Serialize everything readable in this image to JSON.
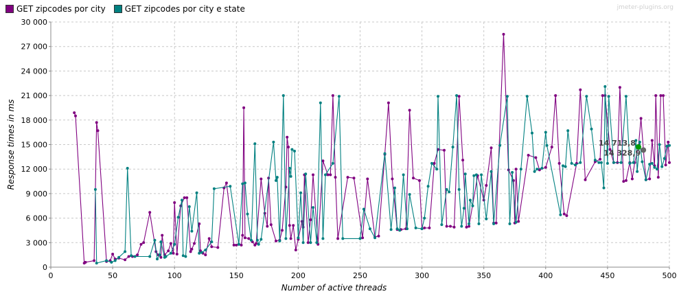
{
  "watermark": "jmeter-plugins.org",
  "chart_data": {
    "type": "line",
    "title": "",
    "xlabel": "Number of active threads",
    "ylabel": "Response times in ms",
    "xlim": [
      0,
      500
    ],
    "ylim": [
      0,
      30000
    ],
    "x_ticks": [
      0,
      50,
      100,
      150,
      200,
      250,
      300,
      350,
      400,
      450,
      500
    ],
    "y_ticks": [
      0,
      3000,
      6000,
      9000,
      12000,
      15000,
      18000,
      21000,
      24000,
      27000,
      30000
    ],
    "x_tick_labels": [
      "0",
      "50",
      "100",
      "150",
      "200",
      "250",
      "300",
      "350",
      "400",
      "450",
      "500"
    ],
    "y_tick_labels": [
      "0",
      "3 000",
      "6 000",
      "9 000",
      "12 000",
      "15 000",
      "18 000",
      "21 000",
      "24 000",
      "27 000",
      "30 000"
    ],
    "grid": true,
    "legend_position": "top-left",
    "annotations": [
      {
        "text": "14 713,8",
        "x": 475,
        "y": 14714
      },
      {
        "text": "14 328,9",
        "x": 479,
        "y": 14329
      }
    ],
    "series": [
      {
        "name": "GET zipcodes por city",
        "color": "#800080",
        "points": [
          [
            19,
            18900
          ],
          [
            20,
            18500
          ],
          [
            27,
            500
          ],
          [
            28,
            600
          ],
          [
            35,
            800
          ],
          [
            37,
            17700
          ],
          [
            38,
            16700
          ],
          [
            45,
            700
          ],
          [
            48,
            800
          ],
          [
            50,
            1600
          ],
          [
            52,
            1000
          ],
          [
            55,
            1100
          ],
          [
            60,
            900
          ],
          [
            63,
            1300
          ],
          [
            66,
            1300
          ],
          [
            70,
            1500
          ],
          [
            73,
            2800
          ],
          [
            75,
            3000
          ],
          [
            80,
            6700
          ],
          [
            85,
            1900
          ],
          [
            87,
            1500
          ],
          [
            89,
            1200
          ],
          [
            90,
            3900
          ],
          [
            92,
            1500
          ],
          [
            95,
            2000
          ],
          [
            97,
            2900
          ],
          [
            99,
            1700
          ],
          [
            100,
            7900
          ],
          [
            102,
            1600
          ],
          [
            105,
            7500
          ],
          [
            108,
            8500
          ],
          [
            110,
            8500
          ],
          [
            113,
            1900
          ],
          [
            114,
            2200
          ],
          [
            116,
            2900
          ],
          [
            120,
            5300
          ],
          [
            121,
            2000
          ],
          [
            123,
            1700
          ],
          [
            125,
            1500
          ],
          [
            128,
            3500
          ],
          [
            130,
            2500
          ],
          [
            135,
            2400
          ],
          [
            140,
            9700
          ],
          [
            142,
            10300
          ],
          [
            148,
            2700
          ],
          [
            150,
            2700
          ],
          [
            152,
            2800
          ],
          [
            154,
            2700
          ],
          [
            155,
            3900
          ],
          [
            156,
            19500
          ],
          [
            157,
            3600
          ],
          [
            160,
            3500
          ],
          [
            163,
            3100
          ],
          [
            165,
            2700
          ],
          [
            166,
            2900
          ],
          [
            170,
            10800
          ],
          [
            173,
            6600
          ],
          [
            175,
            5000
          ],
          [
            176,
            10900
          ],
          [
            178,
            5200
          ],
          [
            182,
            3200
          ],
          [
            185,
            3300
          ],
          [
            187,
            4500
          ],
          [
            190,
            9800
          ],
          [
            191,
            15900
          ],
          [
            192,
            14700
          ],
          [
            193,
            5100
          ],
          [
            194,
            3500
          ],
          [
            196,
            5100
          ],
          [
            198,
            2100
          ],
          [
            200,
            3400
          ],
          [
            203,
            5600
          ],
          [
            204,
            4900
          ],
          [
            205,
            11300
          ],
          [
            208,
            3000
          ],
          [
            210,
            5800
          ],
          [
            212,
            11300
          ],
          [
            216,
            2800
          ],
          [
            220,
            13000
          ],
          [
            224,
            11300
          ],
          [
            226,
            11300
          ],
          [
            228,
            21000
          ],
          [
            230,
            11000
          ],
          [
            232,
            3500
          ],
          [
            240,
            11000
          ],
          [
            245,
            10900
          ],
          [
            252,
            3600
          ],
          [
            256,
            10800
          ],
          [
            262,
            3700
          ],
          [
            265,
            3800
          ],
          [
            270,
            13800
          ],
          [
            273,
            20100
          ],
          [
            276,
            10800
          ],
          [
            280,
            4600
          ],
          [
            283,
            4600
          ],
          [
            287,
            4700
          ],
          [
            290,
            19200
          ],
          [
            293,
            10900
          ],
          [
            298,
            10600
          ],
          [
            300,
            4700
          ],
          [
            302,
            4800
          ],
          [
            306,
            4800
          ],
          [
            310,
            12700
          ],
          [
            313,
            14400
          ],
          [
            318,
            14300
          ],
          [
            320,
            5000
          ],
          [
            323,
            5000
          ],
          [
            326,
            4900
          ],
          [
            330,
            20900
          ],
          [
            333,
            13100
          ],
          [
            336,
            4900
          ],
          [
            338,
            5000
          ],
          [
            345,
            11200
          ],
          [
            350,
            8200
          ],
          [
            352,
            10000
          ],
          [
            356,
            14600
          ],
          [
            358,
            5400
          ],
          [
            360,
            5400
          ],
          [
            366,
            28500
          ],
          [
            370,
            11900
          ],
          [
            374,
            10600
          ],
          [
            375,
            5400
          ],
          [
            376,
            12000
          ],
          [
            378,
            5600
          ],
          [
            386,
            13700
          ],
          [
            392,
            13400
          ],
          [
            395,
            11900
          ],
          [
            400,
            12200
          ],
          [
            405,
            14700
          ],
          [
            408,
            21000
          ],
          [
            411,
            12700
          ],
          [
            415,
            6500
          ],
          [
            417,
            6300
          ],
          [
            425,
            12700
          ],
          [
            428,
            21700
          ],
          [
            432,
            10700
          ],
          [
            440,
            12900
          ],
          [
            444,
            13200
          ],
          [
            446,
            21000
          ],
          [
            448,
            21000
          ],
          [
            452,
            14400
          ],
          [
            455,
            12800
          ],
          [
            458,
            12800
          ],
          [
            460,
            22000
          ],
          [
            463,
            10500
          ],
          [
            465,
            10600
          ],
          [
            468,
            12800
          ],
          [
            470,
            10800
          ],
          [
            472,
            12800
          ],
          [
            475,
            14714
          ],
          [
            477,
            18200
          ],
          [
            479,
            14329
          ],
          [
            481,
            10700
          ],
          [
            484,
            10800
          ],
          [
            486,
            15500
          ],
          [
            488,
            12400
          ],
          [
            489,
            21000
          ],
          [
            491,
            11000
          ],
          [
            493,
            21000
          ],
          [
            495,
            21000
          ],
          [
            497,
            12500
          ],
          [
            499,
            15300
          ],
          [
            500,
            12800
          ]
        ]
      },
      {
        "name": "GET zipcodes por city e state",
        "color": "#008080",
        "points": [
          [
            36,
            9500
          ],
          [
            37,
            500
          ],
          [
            45,
            800
          ],
          [
            49,
            600
          ],
          [
            52,
            800
          ],
          [
            55,
            1200
          ],
          [
            60,
            1900
          ],
          [
            62,
            12100
          ],
          [
            65,
            1400
          ],
          [
            68,
            1300
          ],
          [
            80,
            1300
          ],
          [
            84,
            3300
          ],
          [
            86,
            1000
          ],
          [
            88,
            1500
          ],
          [
            89,
            3100
          ],
          [
            92,
            1200
          ],
          [
            93,
            1300
          ],
          [
            97,
            1700
          ],
          [
            100,
            2800
          ],
          [
            103,
            6100
          ],
          [
            106,
            8200
          ],
          [
            107,
            1400
          ],
          [
            109,
            1300
          ],
          [
            112,
            7400
          ],
          [
            114,
            4400
          ],
          [
            118,
            9100
          ],
          [
            120,
            1700
          ],
          [
            122,
            1800
          ],
          [
            125,
            2100
          ],
          [
            130,
            3100
          ],
          [
            132,
            9600
          ],
          [
            145,
            9900
          ],
          [
            152,
            2800
          ],
          [
            155,
            10200
          ],
          [
            157,
            10300
          ],
          [
            159,
            6500
          ],
          [
            162,
            3300
          ],
          [
            165,
            15100
          ],
          [
            167,
            3300
          ],
          [
            168,
            2800
          ],
          [
            170,
            3400
          ],
          [
            180,
            15300
          ],
          [
            182,
            10600
          ],
          [
            183,
            11000
          ],
          [
            185,
            3200
          ],
          [
            188,
            21000
          ],
          [
            190,
            3500
          ],
          [
            193,
            12100
          ],
          [
            194,
            11100
          ],
          [
            195,
            14400
          ],
          [
            197,
            14200
          ],
          [
            200,
            3600
          ],
          [
            202,
            9100
          ],
          [
            204,
            3000
          ],
          [
            206,
            11400
          ],
          [
            210,
            3000
          ],
          [
            212,
            7300
          ],
          [
            215,
            3000
          ],
          [
            218,
            20100
          ],
          [
            220,
            3500
          ],
          [
            222,
            11300
          ],
          [
            228,
            12700
          ],
          [
            233,
            20900
          ],
          [
            236,
            3500
          ],
          [
            250,
            3500
          ],
          [
            253,
            7100
          ],
          [
            258,
            4700
          ],
          [
            262,
            3600
          ],
          [
            270,
            13900
          ],
          [
            275,
            4600
          ],
          [
            278,
            9700
          ],
          [
            280,
            4700
          ],
          [
            282,
            4500
          ],
          [
            285,
            11300
          ],
          [
            288,
            4700
          ],
          [
            290,
            8900
          ],
          [
            295,
            4800
          ],
          [
            300,
            4700
          ],
          [
            302,
            6000
          ],
          [
            305,
            9900
          ],
          [
            308,
            12700
          ],
          [
            312,
            12000
          ],
          [
            313,
            20900
          ],
          [
            316,
            5200
          ],
          [
            320,
            9500
          ],
          [
            322,
            9200
          ],
          [
            325,
            14700
          ],
          [
            328,
            21000
          ],
          [
            330,
            9500
          ],
          [
            332,
            5000
          ],
          [
            334,
            7200
          ],
          [
            335,
            11400
          ],
          [
            338,
            5300
          ],
          [
            339,
            8200
          ],
          [
            341,
            7500
          ],
          [
            342,
            11200
          ],
          [
            344,
            11300
          ],
          [
            346,
            5300
          ],
          [
            348,
            11300
          ],
          [
            352,
            5900
          ],
          [
            356,
            11700
          ],
          [
            358,
            5300
          ],
          [
            363,
            14900
          ],
          [
            369,
            20900
          ],
          [
            371,
            5300
          ],
          [
            373,
            11600
          ],
          [
            376,
            5500
          ],
          [
            380,
            12000
          ],
          [
            385,
            20900
          ],
          [
            389,
            16400
          ],
          [
            391,
            11700
          ],
          [
            393,
            12000
          ],
          [
            397,
            12100
          ],
          [
            400,
            16500
          ],
          [
            401,
            14900
          ],
          [
            412,
            6400
          ],
          [
            414,
            12400
          ],
          [
            416,
            12300
          ],
          [
            418,
            16700
          ],
          [
            421,
            12700
          ],
          [
            424,
            12500
          ],
          [
            428,
            12800
          ],
          [
            433,
            20900
          ],
          [
            437,
            16900
          ],
          [
            440,
            13100
          ],
          [
            443,
            12800
          ],
          [
            445,
            12800
          ],
          [
            447,
            9700
          ],
          [
            448,
            22100
          ],
          [
            450,
            12700
          ],
          [
            451,
            20900
          ],
          [
            455,
            12800
          ],
          [
            461,
            12800
          ],
          [
            465,
            20900
          ],
          [
            468,
            12700
          ],
          [
            471,
            12800
          ],
          [
            473,
            15500
          ],
          [
            474,
            11700
          ],
          [
            476,
            15300
          ],
          [
            478,
            12900
          ],
          [
            481,
            10700
          ],
          [
            484,
            12600
          ],
          [
            486,
            12700
          ],
          [
            488,
            12200
          ],
          [
            490,
            12000
          ],
          [
            492,
            15000
          ],
          [
            494,
            12300
          ],
          [
            496,
            13300
          ],
          [
            498,
            14800
          ],
          [
            500,
            14900
          ]
        ]
      }
    ]
  }
}
